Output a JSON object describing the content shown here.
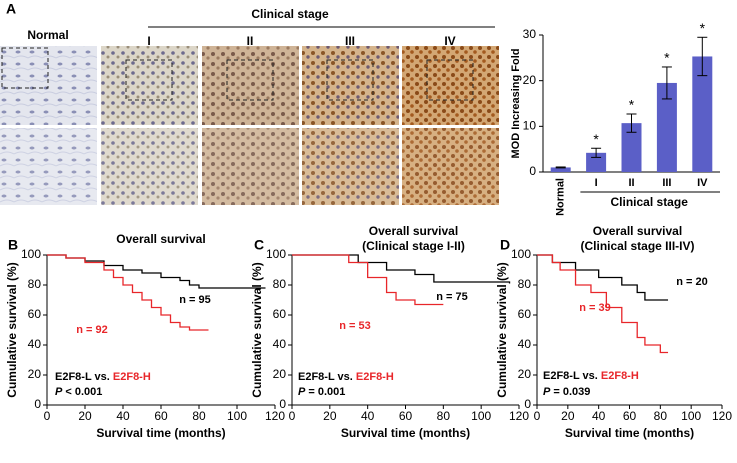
{
  "figure_images": {
    "panel": "A",
    "normal": "Normal",
    "group_label": "Clinical stage",
    "stages": [
      "I",
      "II",
      "III",
      "IV"
    ]
  },
  "chart_data": [
    {
      "type": "bar",
      "ylabel": "MOD Increasing Fold",
      "xlabel": "Clinical stage",
      "categories": [
        "Normal",
        "I",
        "II",
        "III",
        "IV"
      ],
      "values": [
        1,
        4.2,
        10.7,
        19.5,
        25.3
      ],
      "errors": [
        0.1,
        1,
        2,
        3.5,
        4.2
      ],
      "annotations": [
        null,
        "*",
        "*",
        "*",
        "*"
      ],
      "color": "#5b5fc7",
      "ylim": [
        0,
        30
      ],
      "yticks": [
        0,
        10,
        20,
        30
      ]
    },
    {
      "type": "step",
      "panel": "B",
      "title": "Overall survival",
      "xlabel": "Survival time (months)",
      "ylabel": "Cumulative survival (%)",
      "series": [
        {
          "name": "n = 95",
          "color": "#000000",
          "x": [
            0,
            10,
            20,
            30,
            40,
            50,
            60,
            70,
            75,
            80,
            115
          ],
          "values": [
            100,
            98,
            96,
            93,
            90,
            88,
            85,
            83,
            80,
            78,
            78
          ]
        },
        {
          "name": "n = 92",
          "color": "#e8262a",
          "x": [
            0,
            10,
            20,
            30,
            35,
            40,
            45,
            50,
            55,
            60,
            65,
            70,
            75,
            85
          ],
          "values": [
            100,
            98,
            95,
            90,
            85,
            80,
            75,
            70,
            65,
            60,
            55,
            52,
            50,
            50
          ]
        }
      ],
      "comparison": [
        "E2F8-L vs.",
        "E2F8-H"
      ],
      "p": [
        "P",
        "< 0.001"
      ],
      "xlim": [
        0,
        120
      ],
      "ylim": [
        0,
        100
      ],
      "xticks": [
        0,
        20,
        40,
        60,
        80,
        100,
        120
      ],
      "yticks": [
        0,
        20,
        40,
        60,
        80,
        100
      ]
    },
    {
      "type": "step",
      "panel": "C",
      "title": "Overall survival",
      "subtitle": "(Clinical stage I-II)",
      "xlabel": "Survival time (months)",
      "ylabel": "Cumulative survival (%)",
      "series": [
        {
          "name": "n = 75",
          "color": "#000000",
          "x": [
            0,
            20,
            35,
            50,
            65,
            75,
            115
          ],
          "values": [
            100,
            100,
            95,
            90,
            87,
            82,
            81
          ]
        },
        {
          "name": "n = 53",
          "color": "#e8262a",
          "x": [
            0,
            20,
            30,
            40,
            50,
            55,
            65,
            80
          ],
          "values": [
            100,
            100,
            95,
            85,
            75,
            70,
            67,
            67
          ]
        }
      ],
      "comparison": [
        "E2F8-L vs.",
        "E2F8-H"
      ],
      "p": [
        "P",
        "= 0.001"
      ],
      "xlim": [
        0,
        120
      ],
      "ylim": [
        0,
        100
      ],
      "xticks": [
        0,
        20,
        40,
        60,
        80,
        100,
        120
      ],
      "yticks": [
        0,
        20,
        40,
        60,
        80,
        100
      ]
    },
    {
      "type": "step",
      "panel": "D",
      "title": "Overall survival",
      "subtitle": "(Clinical stage III-IV)",
      "xlabel": "Survival time (months)",
      "ylabel": "Cumulative survival (%)",
      "series": [
        {
          "name": "n = 20",
          "color": "#000000",
          "x": [
            0,
            10,
            25,
            40,
            55,
            65,
            70,
            85
          ],
          "values": [
            100,
            95,
            90,
            85,
            80,
            75,
            70,
            70
          ]
        },
        {
          "name": "n = 39",
          "color": "#e8262a",
          "x": [
            0,
            10,
            15,
            25,
            35,
            45,
            55,
            65,
            70,
            80,
            85
          ],
          "values": [
            100,
            95,
            90,
            80,
            75,
            65,
            55,
            45,
            40,
            35,
            35
          ]
        }
      ],
      "comparison": [
        "E2F8-L vs.",
        "E2F8-H"
      ],
      "p": [
        "P",
        "= 0.039"
      ],
      "xlim": [
        0,
        120
      ],
      "ylim": [
        0,
        100
      ],
      "xticks": [
        0,
        20,
        40,
        60,
        80,
        100,
        120
      ],
      "yticks": [
        0,
        20,
        40,
        60,
        80,
        100
      ]
    }
  ]
}
